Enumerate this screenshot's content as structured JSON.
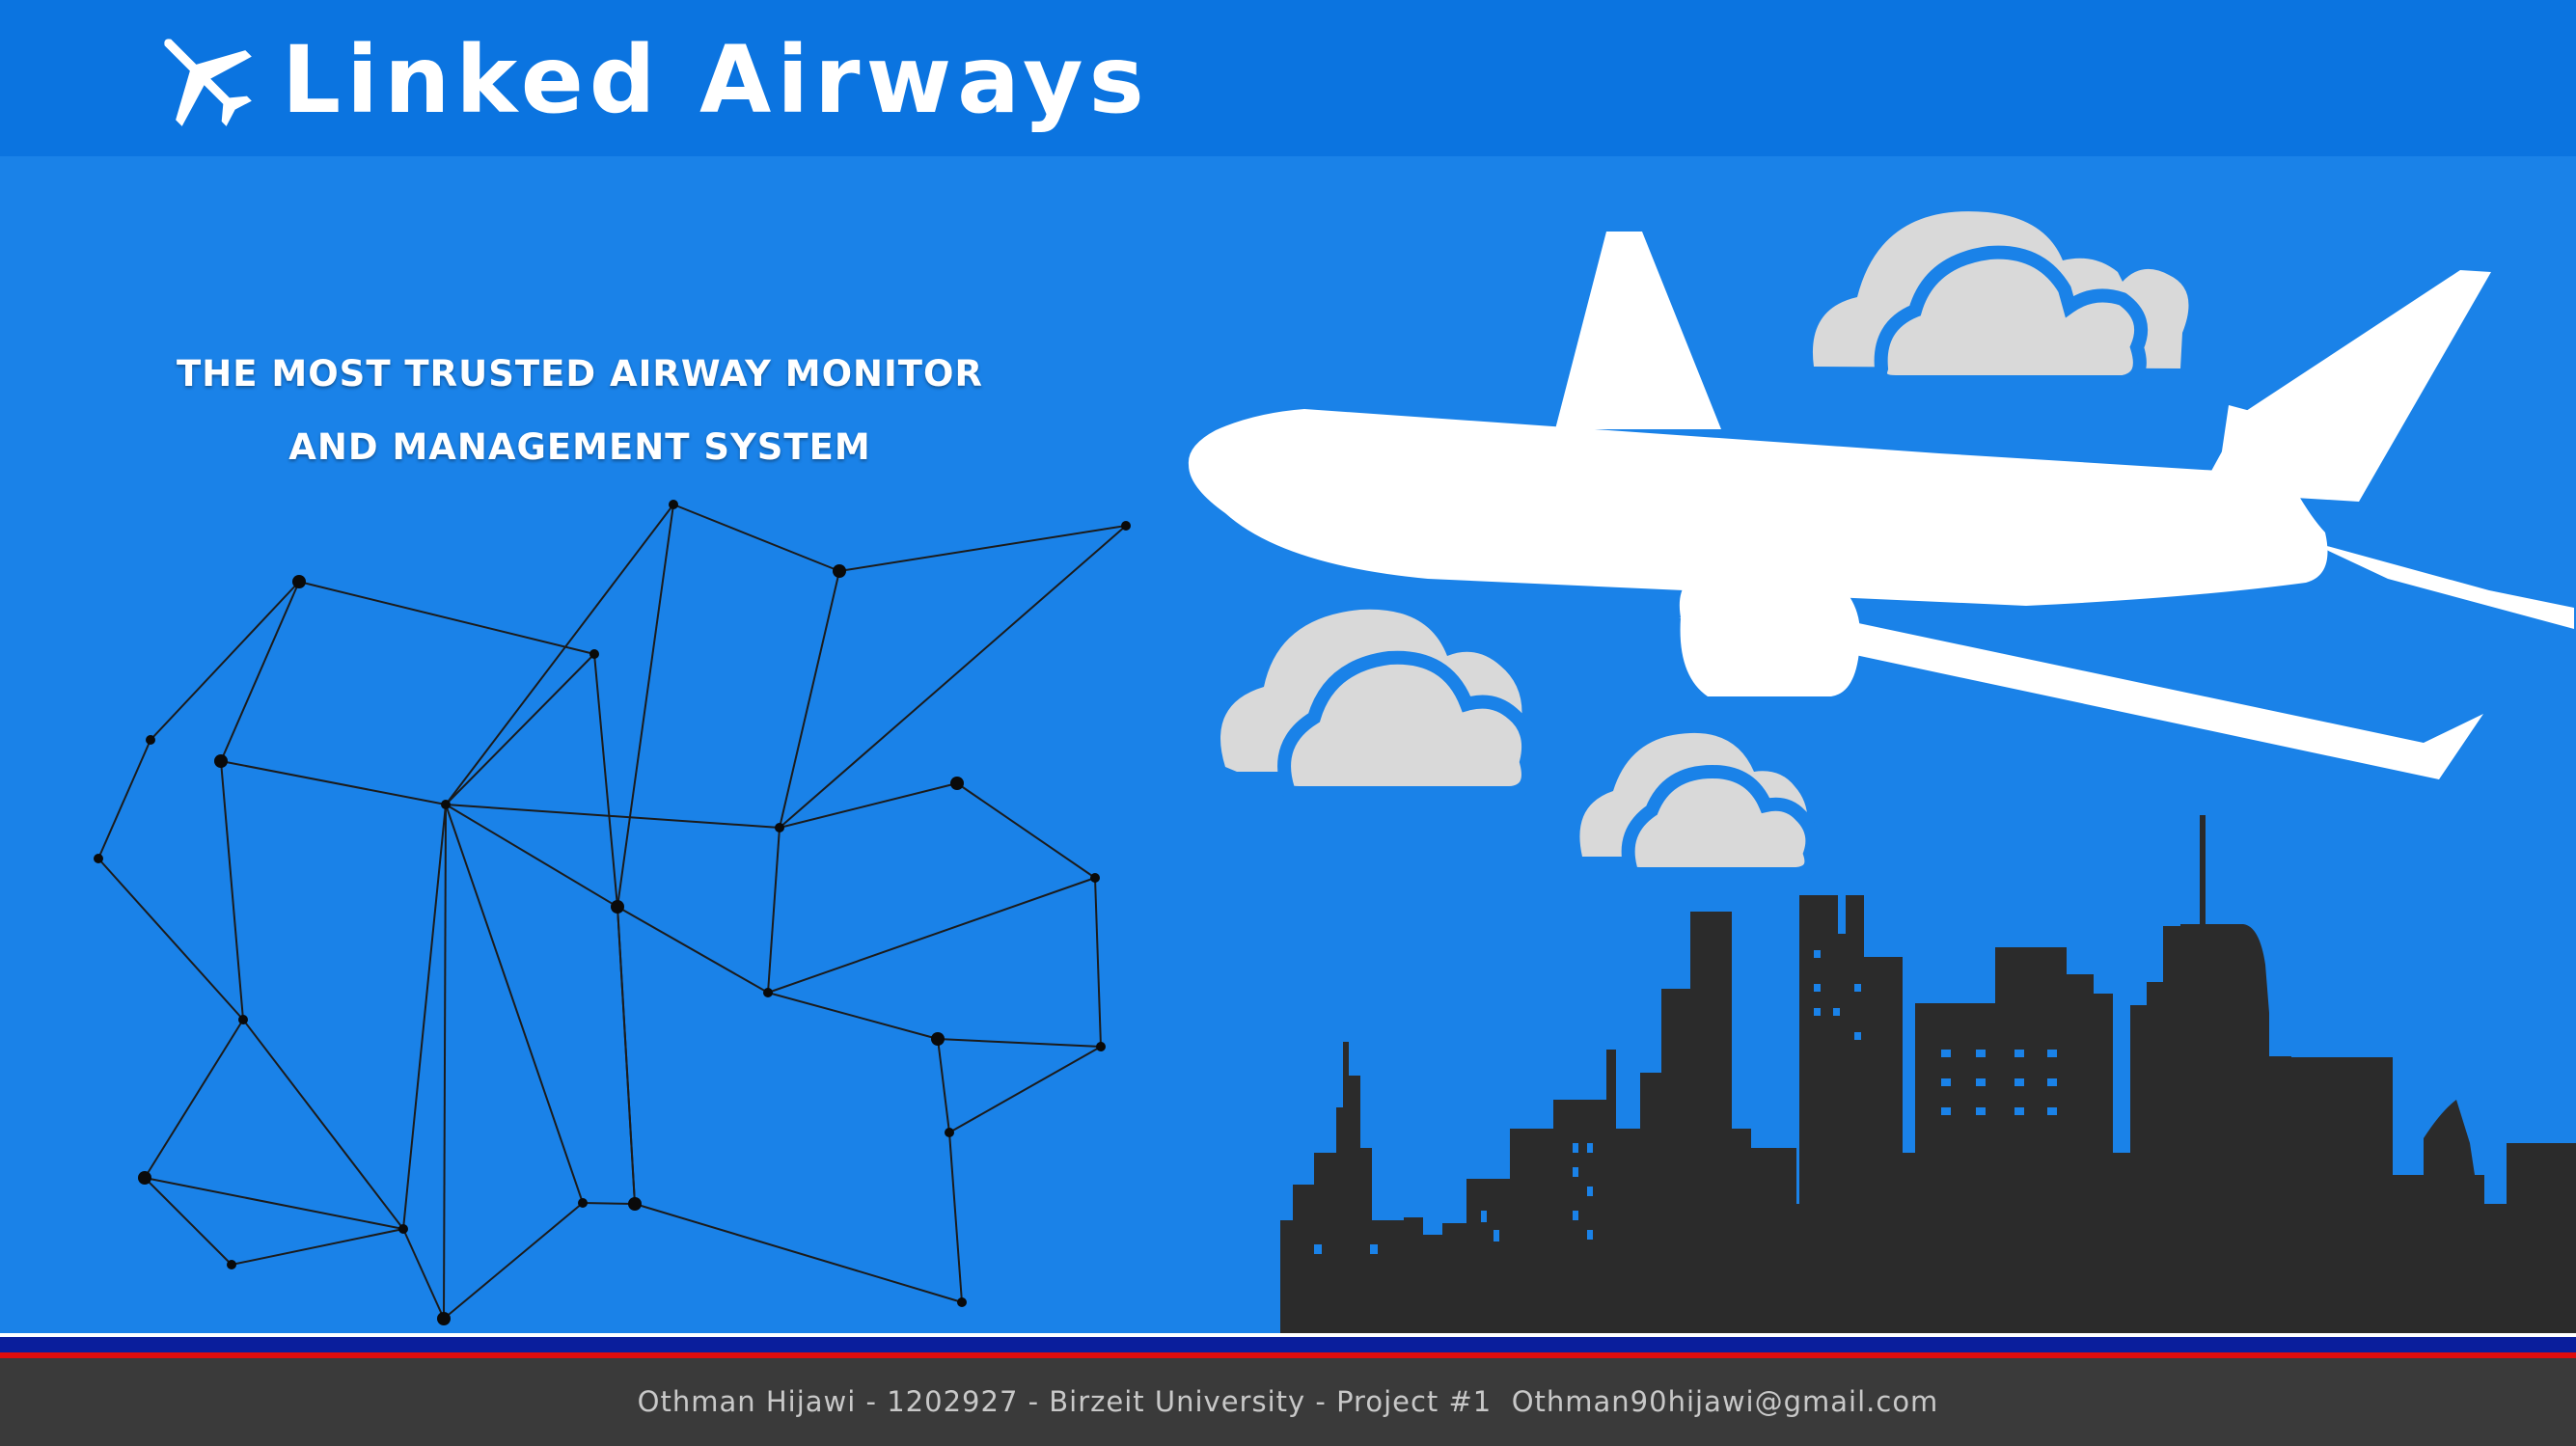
{
  "header": {
    "title": "Linked Airways",
    "logo_icon": "airplane-icon",
    "background": "#0b74e0"
  },
  "hero": {
    "tagline_line1": "THE MOST TRUSTED AIRWAY MONITOR",
    "tagline_line2": "AND MANAGEMENT SYSTEM",
    "background": "#1a82e8",
    "illustrations": [
      "network-graph",
      "airplane-silhouette",
      "clouds",
      "city-skyline"
    ]
  },
  "footer": {
    "credit_text": "Othman Hijawi - 1202927 - Birzeit University - Project #1  Othman90hijawi@gmail.com",
    "stripe_colors": [
      "#0a1e9c",
      "#e00d0d"
    ],
    "background": "#3a3a3a"
  }
}
